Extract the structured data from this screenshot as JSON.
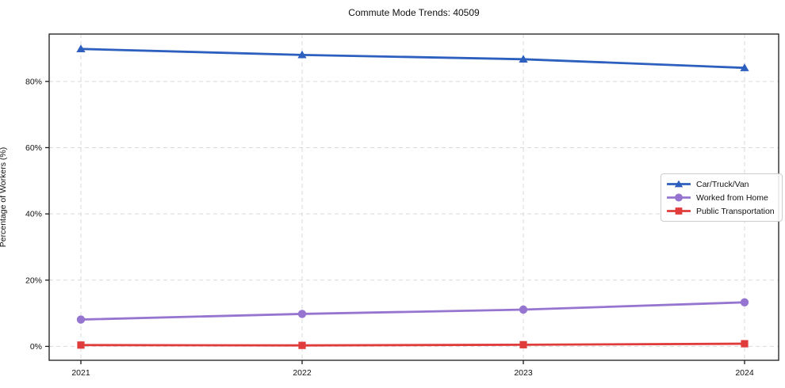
{
  "chart_data": {
    "type": "line",
    "title": "Commute Mode Trends: 40509",
    "xlabel": "",
    "ylabel": "Percentage of Workers (%)",
    "categories": [
      "2021",
      "2022",
      "2023",
      "2024"
    ],
    "series": [
      {
        "name": "Car/Truck/Van",
        "color": "#2d5fbe",
        "marker": "triangle",
        "values": [
          89.8,
          88.0,
          86.7,
          84.1
        ]
      },
      {
        "name": "Worked from Home",
        "color": "#9675d0",
        "marker": "circle",
        "values": [
          8.1,
          9.8,
          11.1,
          13.3
        ]
      },
      {
        "name": "Public Transportation",
        "color": "#e03c3c",
        "marker": "square",
        "values": [
          0.4,
          0.3,
          0.5,
          0.8
        ]
      }
    ],
    "y_ticks": [
      0,
      20,
      40,
      60,
      80
    ],
    "y_tick_labels": [
      "0%",
      "20%",
      "40%",
      "60%",
      "80%"
    ],
    "ylim": [
      -4.2,
      94.3
    ],
    "grid": true,
    "grid_style": "dashed",
    "grid_color": "#d9d9d9",
    "axis_color": "#1a1a1a",
    "legend_position": "right-middle"
  }
}
